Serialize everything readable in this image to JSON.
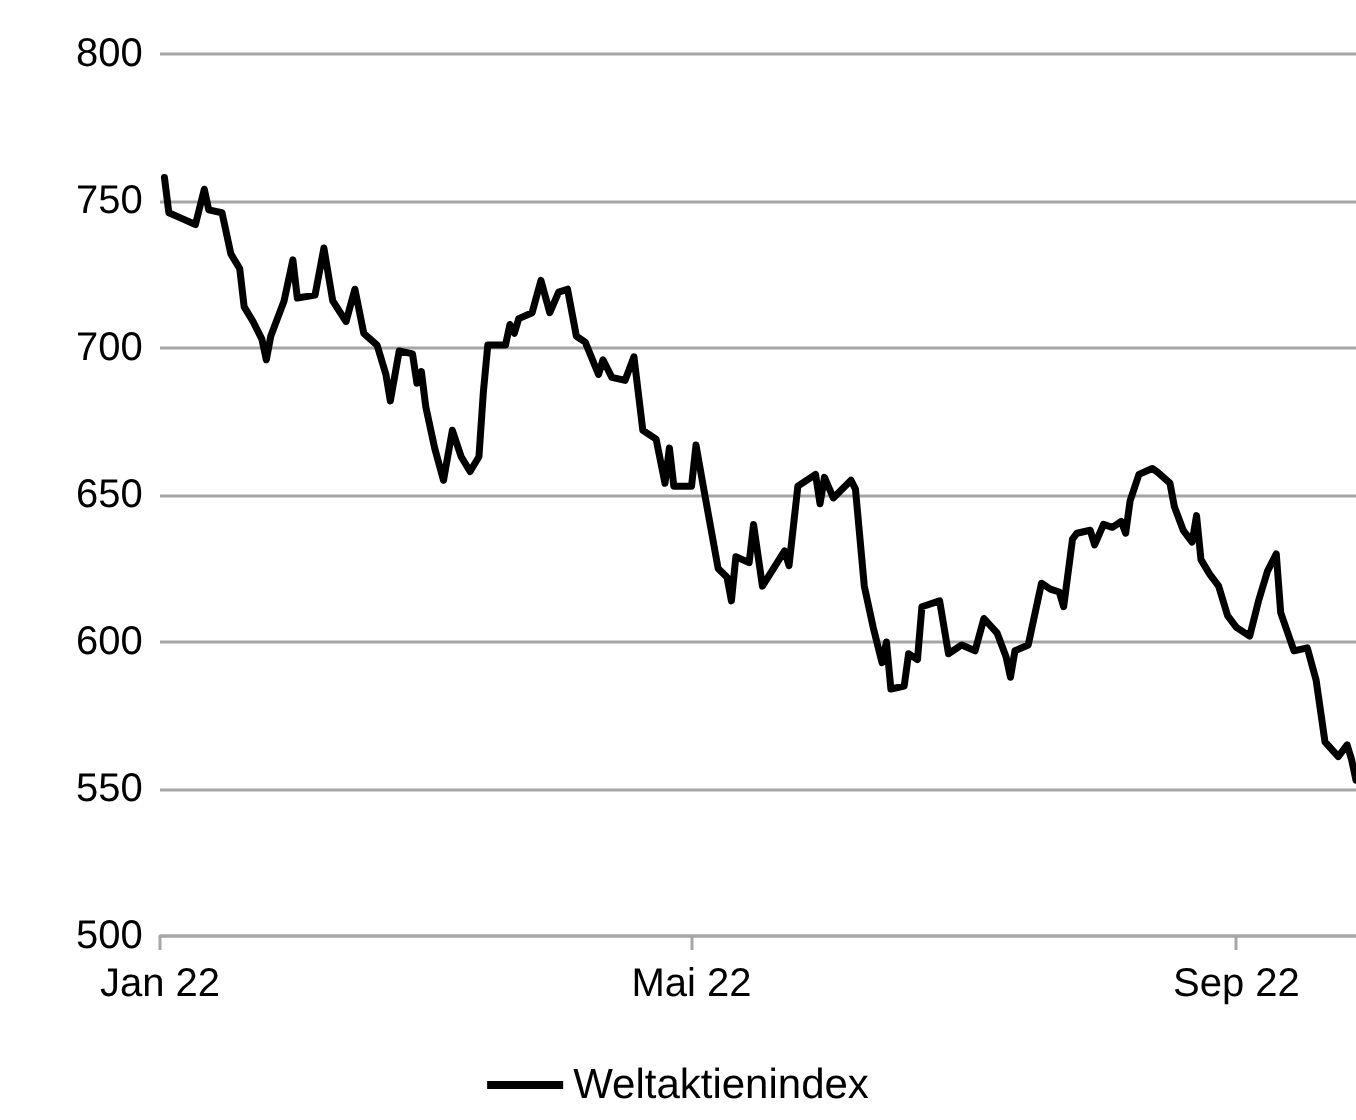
{
  "chart_data": {
    "type": "line",
    "x": [
      "2022-01-02",
      "2022-01-03",
      "2022-01-06",
      "2022-01-09",
      "2022-01-11",
      "2022-01-12",
      "2022-01-15",
      "2022-01-17",
      "2022-01-19",
      "2022-01-20",
      "2022-01-22",
      "2022-01-24",
      "2022-01-25",
      "2022-01-26",
      "2022-01-29",
      "2022-01-31",
      "2022-02-01",
      "2022-02-05",
      "2022-02-07",
      "2022-02-09",
      "2022-02-12",
      "2022-02-14",
      "2022-02-16",
      "2022-02-19",
      "2022-02-21",
      "2022-02-22",
      "2022-02-24",
      "2022-02-27",
      "2022-02-28",
      "2022-03-01",
      "2022-03-02",
      "2022-03-04",
      "2022-03-06",
      "2022-03-08",
      "2022-03-10",
      "2022-03-12",
      "2022-03-14",
      "2022-03-15",
      "2022-03-16",
      "2022-03-20",
      "2022-03-21",
      "2022-03-22",
      "2022-03-23",
      "2022-03-26",
      "2022-03-28",
      "2022-03-30",
      "2022-04-01",
      "2022-04-03",
      "2022-04-05",
      "2022-04-07",
      "2022-04-10",
      "2022-04-11",
      "2022-04-13",
      "2022-04-16",
      "2022-04-18",
      "2022-04-20",
      "2022-04-23",
      "2022-04-25",
      "2022-04-26",
      "2022-04-27",
      "2022-05-01",
      "2022-05-02",
      "2022-05-04",
      "2022-05-07",
      "2022-05-09",
      "2022-05-10",
      "2022-05-11",
      "2022-05-14",
      "2022-05-15",
      "2022-05-17",
      "2022-05-22",
      "2022-05-23",
      "2022-05-25",
      "2022-05-29",
      "2022-05-30",
      "2022-05-31",
      "2022-06-02",
      "2022-06-06",
      "2022-06-07",
      "2022-06-09",
      "2022-06-11",
      "2022-06-13",
      "2022-06-14",
      "2022-06-15",
      "2022-06-18",
      "2022-06-19",
      "2022-06-21",
      "2022-06-22",
      "2022-06-26",
      "2022-06-28",
      "2022-07-01",
      "2022-07-04",
      "2022-07-06",
      "2022-07-09",
      "2022-07-11",
      "2022-07-12",
      "2022-07-13",
      "2022-07-16",
      "2022-07-18",
      "2022-07-19",
      "2022-07-21",
      "2022-07-23",
      "2022-07-24",
      "2022-07-26",
      "2022-07-27",
      "2022-07-30",
      "2022-07-31",
      "2022-08-02",
      "2022-08-04",
      "2022-08-06",
      "2022-08-07",
      "2022-08-08",
      "2022-08-10",
      "2022-08-13",
      "2022-08-14",
      "2022-08-17",
      "2022-08-18",
      "2022-08-20",
      "2022-08-22",
      "2022-08-23",
      "2022-08-24",
      "2022-08-26",
      "2022-08-28",
      "2022-08-30",
      "2022-09-01",
      "2022-09-04",
      "2022-09-06",
      "2022-09-08",
      "2022-09-10",
      "2022-09-11",
      "2022-09-14",
      "2022-09-17",
      "2022-09-19",
      "2022-09-21",
      "2022-09-24",
      "2022-09-26",
      "2022-09-27",
      "2022-09-28"
    ],
    "series": [
      {
        "name": "Weltaktienindex",
        "color": "#000000",
        "values": [
          758,
          746,
          744,
          742,
          754,
          747,
          746,
          732,
          727,
          714,
          709,
          703,
          696,
          704,
          716,
          730,
          717,
          718,
          734,
          716,
          709,
          720,
          705,
          701,
          691,
          682,
          699,
          698,
          688,
          692,
          680,
          666,
          655,
          672,
          663,
          658,
          663,
          685,
          701,
          701,
          708,
          705,
          710,
          712,
          723,
          712,
          719,
          720,
          704,
          702,
          691,
          696,
          690,
          689,
          697,
          672,
          669,
          654,
          666,
          653,
          653,
          667,
          650,
          625,
          622,
          614,
          629,
          627,
          640,
          619,
          631,
          626,
          653,
          657,
          647,
          656,
          649,
          655,
          652,
          619,
          605,
          593,
          600,
          584,
          585,
          596,
          594,
          612,
          614,
          596,
          599,
          597,
          608,
          603,
          595,
          588,
          597,
          599,
          613,
          620,
          618,
          617,
          612,
          635,
          637,
          638,
          633,
          640,
          639,
          641,
          637,
          648,
          657,
          659,
          658,
          654,
          646,
          638,
          634,
          643,
          628,
          623,
          619,
          609,
          605,
          602,
          614,
          624,
          630,
          610,
          597,
          598,
          587,
          566,
          561,
          565,
          560,
          553
        ]
      }
    ],
    "xlim": [
      "2022-01-01",
      "2022-09-28"
    ],
    "xticks": [
      {
        "value": "2022-01-01",
        "label": "Jan 22"
      },
      {
        "value": "2022-05-01",
        "label": "Mai 22"
      },
      {
        "value": "2022-09-01",
        "label": "Sep 22"
      }
    ],
    "ylim": [
      500,
      800
    ],
    "yticks": [
      500,
      550,
      600,
      650,
      700,
      750,
      800
    ],
    "grid": "y",
    "legend": "bottom",
    "marker": "none",
    "line_style": "solid"
  }
}
